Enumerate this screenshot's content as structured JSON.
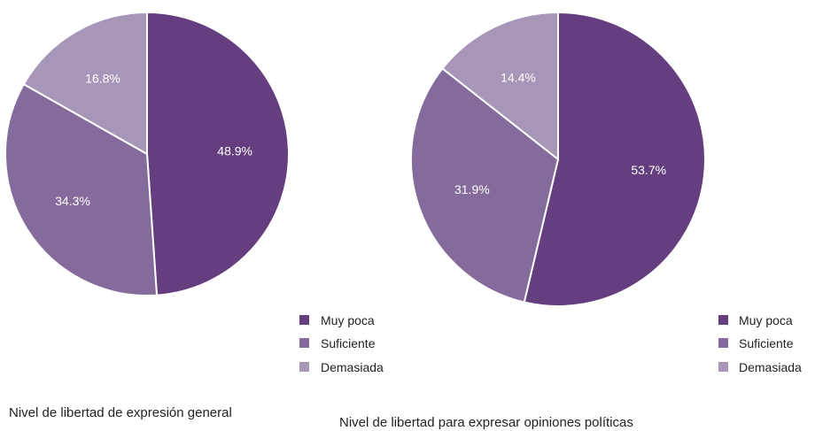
{
  "colors": {
    "muy_poca": "#643e7f",
    "suficiente": "#856b9c",
    "demasiada": "#a896b9",
    "separator": "#ffffff"
  },
  "chart_data": [
    {
      "type": "pie",
      "caption": "Nivel de libertad de expresión general",
      "categories": [
        "Muy poca",
        "Suficiente",
        "Demasiada"
      ],
      "values": [
        48.9,
        34.3,
        16.8
      ],
      "value_labels": [
        "48.9%",
        "34.3%",
        "16.8%"
      ],
      "legend": [
        "Muy poca",
        "Suficiente",
        "Demasiada"
      ],
      "legend_position": "bottom-right",
      "start": "12 o'clock, clockwise"
    },
    {
      "type": "pie",
      "caption": "Nivel de libertad para expresar opiniones políticas",
      "categories": [
        "Muy poca",
        "Suficiente",
        "Demasiada"
      ],
      "values": [
        53.7,
        31.9,
        14.4
      ],
      "value_labels": [
        "53.7%",
        "31.9%",
        "14.4%"
      ],
      "legend": [
        "Muy poca",
        "Suficiente",
        "Demasiada"
      ],
      "legend_position": "bottom-right",
      "start": "12 o'clock, clockwise"
    }
  ]
}
